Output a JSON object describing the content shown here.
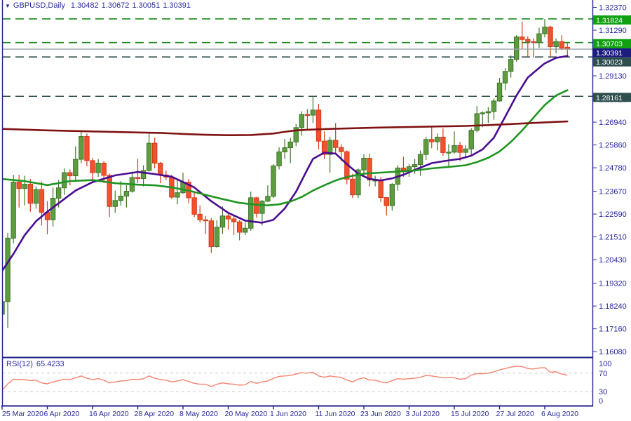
{
  "header": {
    "symbol": "GBPUSD,Daily",
    "open": "1.30482",
    "high": "1.30672",
    "low": "1.30051",
    "close": "1.30391"
  },
  "colors": {
    "background": "#ffffff",
    "frame": "#22228c",
    "axis_text": "#29299b",
    "bull_fill": "#5f9c40",
    "bull_stroke": "#3e7728",
    "bear_fill": "#f0512e",
    "bear_stroke": "#d63c1b",
    "ma_fast": "#4a0d90",
    "ma_mid": "#209420",
    "ma_slow": "#801212",
    "level_green": "#1b8a1b",
    "level_slate": "#2F4F4F",
    "bid_line": "#98a2a8",
    "tag_green": "#10a010",
    "tag_navy": "#1c1c7d",
    "tag_slate": "#2F4F4F",
    "tag_text": "#ffffff",
    "rsi_line": "#f5846f",
    "rsi_grid": "#c8c8c8"
  },
  "chart_data": {
    "type": "candlestick",
    "title": "GBPUSD,Daily",
    "ylim": [
      1.15886,
      1.32718
    ],
    "grid": "off",
    "price_ticks": [
      "1.32370",
      "1.31290",
      "1.29130",
      "1.28020",
      "1.26940",
      "1.25860",
      "1.24780",
      "1.23670",
      "1.22590",
      "1.21510",
      "1.20430",
      "1.19320",
      "1.18240",
      "1.17160",
      "1.16080"
    ],
    "x_ticks": [
      {
        "label": "25 Mar 2020",
        "bar": 0
      },
      {
        "label": "6 Apr 2020",
        "bar": 8
      },
      {
        "label": "16 Apr 2020",
        "bar": 16
      },
      {
        "label": "28 Apr 2020",
        "bar": 24
      },
      {
        "label": "8 May 2020",
        "bar": 32
      },
      {
        "label": "20 May 2020",
        "bar": 40
      },
      {
        "label": "1 Jun 2020",
        "bar": 48
      },
      {
        "label": "11 Jun 2020",
        "bar": 56
      },
      {
        "label": "23 Jun 2020",
        "bar": 64
      },
      {
        "label": "3 Jul 2020",
        "bar": 72
      },
      {
        "label": "15 Jul 2020",
        "bar": 80
      },
      {
        "label": "27 Jul 2020",
        "bar": 88
      },
      {
        "label": "6 Aug 2020",
        "bar": 96
      }
    ],
    "levels": [
      {
        "label": "1.31824",
        "price": 1.31824,
        "line": "dashed",
        "color_key": "level_green",
        "tag_key": "tag_green"
      },
      {
        "label": "1.30703",
        "price": 1.30703,
        "line": "dashed",
        "color_key": "level_green",
        "tag_key": "tag_green"
      },
      {
        "label": "1.30391",
        "price": 1.30391,
        "line": "solid",
        "color_key": "bid_line",
        "tag_key": "tag_navy"
      },
      {
        "label": "1.30023",
        "price": 1.30023,
        "line": "dashed",
        "color_key": "level_slate",
        "tag_key": "tag_slate"
      },
      {
        "label": "1.28161",
        "price": 1.28161,
        "line": "dashed",
        "color_key": "level_slate",
        "tag_key": "tag_slate"
      }
    ],
    "candles": [
      [
        1.1785,
        1.1855,
        1.1665,
        1.1845
      ],
      [
        1.1845,
        1.217,
        1.172,
        1.2145
      ],
      [
        1.2145,
        1.2445,
        1.212,
        1.241
      ],
      [
        1.241,
        1.2445,
        1.229,
        1.238
      ],
      [
        1.238,
        1.244,
        1.23,
        1.24
      ],
      [
        1.24,
        1.2425,
        1.227,
        1.231
      ],
      [
        1.231,
        1.239,
        1.2285,
        1.2375
      ],
      [
        1.2375,
        1.2413,
        1.2205,
        1.2267
      ],
      [
        1.2267,
        1.232,
        1.2163,
        1.2232
      ],
      [
        1.2232,
        1.2385,
        1.22,
        1.2334
      ],
      [
        1.2334,
        1.242,
        1.229,
        1.2383
      ],
      [
        1.2383,
        1.2475,
        1.235,
        1.2455
      ],
      [
        1.2455,
        1.247,
        1.2395,
        1.244
      ],
      [
        1.244,
        1.258,
        1.242,
        1.2518
      ],
      [
        1.2518,
        1.265,
        1.25,
        1.2626
      ],
      [
        1.2626,
        1.264,
        1.2485,
        1.2512
      ],
      [
        1.2512,
        1.2525,
        1.2405,
        1.2455
      ],
      [
        1.2455,
        1.252,
        1.2435,
        1.25
      ],
      [
        1.25,
        1.251,
        1.2405,
        1.2442
      ],
      [
        1.2442,
        1.245,
        1.2245,
        1.2295
      ],
      [
        1.2295,
        1.237,
        1.2265,
        1.2323
      ],
      [
        1.2323,
        1.2415,
        1.23,
        1.2344
      ],
      [
        1.2344,
        1.2395,
        1.229,
        1.2367
      ],
      [
        1.2367,
        1.246,
        1.236,
        1.2432
      ],
      [
        1.2432,
        1.252,
        1.2405,
        1.2427
      ],
      [
        1.2427,
        1.249,
        1.239,
        1.2465
      ],
      [
        1.2465,
        1.2643,
        1.246,
        1.2594
      ],
      [
        1.2594,
        1.262,
        1.2475,
        1.25
      ],
      [
        1.25,
        1.2505,
        1.2405,
        1.2444
      ],
      [
        1.2444,
        1.2465,
        1.242,
        1.2434
      ],
      [
        1.2434,
        1.2445,
        1.233,
        1.2339
      ],
      [
        1.2339,
        1.242,
        1.2305,
        1.236
      ],
      [
        1.236,
        1.2455,
        1.2355,
        1.241
      ],
      [
        1.241,
        1.2425,
        1.231,
        1.2336
      ],
      [
        1.2336,
        1.2365,
        1.2245,
        1.2258
      ],
      [
        1.2258,
        1.23,
        1.222,
        1.2232
      ],
      [
        1.2232,
        1.225,
        1.2165,
        1.2227
      ],
      [
        1.2227,
        1.224,
        1.2075,
        1.2105
      ],
      [
        1.2105,
        1.223,
        1.21,
        1.2197
      ],
      [
        1.2197,
        1.2295,
        1.2165,
        1.225
      ],
      [
        1.225,
        1.2262,
        1.2185,
        1.2236
      ],
      [
        1.2236,
        1.2255,
        1.216,
        1.2222
      ],
      [
        1.2222,
        1.223,
        1.2135,
        1.2173
      ],
      [
        1.2173,
        1.222,
        1.216,
        1.2192
      ],
      [
        1.2192,
        1.2365,
        1.218,
        1.2336
      ],
      [
        1.2336,
        1.234,
        1.2242,
        1.2262
      ],
      [
        1.2262,
        1.2325,
        1.2205,
        1.232
      ],
      [
        1.232,
        1.2395,
        1.2315,
        1.2343
      ],
      [
        1.2343,
        1.2495,
        1.2335,
        1.2487
      ],
      [
        1.2487,
        1.2575,
        1.247,
        1.2553
      ],
      [
        1.2553,
        1.2615,
        1.252,
        1.2573
      ],
      [
        1.2573,
        1.262,
        1.25,
        1.26
      ],
      [
        1.26,
        1.2685,
        1.258,
        1.2668
      ],
      [
        1.2668,
        1.2745,
        1.263,
        1.273
      ],
      [
        1.273,
        1.2755,
        1.266,
        1.2727
      ],
      [
        1.2727,
        1.2816,
        1.269,
        1.2751
      ],
      [
        1.2751,
        1.278,
        1.2565,
        1.2604
      ],
      [
        1.2604,
        1.265,
        1.252,
        1.2541
      ],
      [
        1.2541,
        1.2625,
        1.2455,
        1.2608
      ],
      [
        1.2608,
        1.269,
        1.254,
        1.2574
      ],
      [
        1.2574,
        1.259,
        1.251,
        1.2554
      ],
      [
        1.2554,
        1.256,
        1.24,
        1.2424
      ],
      [
        1.2424,
        1.245,
        1.2335,
        1.235
      ],
      [
        1.235,
        1.2475,
        1.2335,
        1.2468
      ],
      [
        1.2468,
        1.2542,
        1.244,
        1.2523
      ],
      [
        1.2523,
        1.2545,
        1.239,
        1.242
      ],
      [
        1.242,
        1.244,
        1.239,
        1.242
      ],
      [
        1.242,
        1.2435,
        1.2315,
        1.2337
      ],
      [
        1.2337,
        1.234,
        1.2252,
        1.2299
      ],
      [
        1.2299,
        1.2405,
        1.2275,
        1.24
      ],
      [
        1.24,
        1.249,
        1.237,
        1.2477
      ],
      [
        1.2477,
        1.253,
        1.2435,
        1.2466
      ],
      [
        1.2466,
        1.2495,
        1.2435,
        1.2483
      ],
      [
        1.2483,
        1.252,
        1.245,
        1.2493
      ],
      [
        1.2493,
        1.256,
        1.244,
        1.2541
      ],
      [
        1.2541,
        1.2625,
        1.2515,
        1.2612
      ],
      [
        1.2612,
        1.267,
        1.257,
        1.2601
      ],
      [
        1.2601,
        1.264,
        1.256,
        1.2623
      ],
      [
        1.2623,
        1.2665,
        1.2535,
        1.255
      ],
      [
        1.255,
        1.259,
        1.248,
        1.2552
      ],
      [
        1.2552,
        1.265,
        1.2545,
        1.2583
      ],
      [
        1.2583,
        1.26,
        1.251,
        1.2551
      ],
      [
        1.2551,
        1.2585,
        1.2523,
        1.2567
      ],
      [
        1.2567,
        1.2665,
        1.254,
        1.2655
      ],
      [
        1.2655,
        1.277,
        1.2645,
        1.2734
      ],
      [
        1.2734,
        1.2745,
        1.267,
        1.2738
      ],
      [
        1.2738,
        1.2765,
        1.269,
        1.2744
      ],
      [
        1.2744,
        1.2805,
        1.2705,
        1.2794
      ],
      [
        1.2794,
        1.2903,
        1.2791,
        1.2879
      ],
      [
        1.2879,
        1.295,
        1.2845,
        1.2934
      ],
      [
        1.2934,
        1.301,
        1.2905,
        1.2991
      ],
      [
        1.2991,
        1.3105,
        1.298,
        1.3097
      ],
      [
        1.3097,
        1.317,
        1.304,
        1.3085
      ],
      [
        1.3085,
        1.31,
        1.3005,
        1.3075
      ],
      [
        1.3075,
        1.309,
        1.3,
        1.307
      ],
      [
        1.307,
        1.314,
        1.3045,
        1.3112
      ],
      [
        1.3112,
        1.31824,
        1.3095,
        1.3144
      ],
      [
        1.3144,
        1.315,
        1.3005,
        1.3051
      ],
      [
        1.3051,
        1.309,
        1.302,
        1.3075
      ],
      [
        1.3075,
        1.3105,
        1.3035,
        1.3044
      ],
      [
        1.30482,
        1.30672,
        1.30051,
        1.30391
      ]
    ],
    "ma_series": [
      {
        "name": "ma-fast-purple",
        "color_key": "ma_fast",
        "points": [
          [
            0,
            1.199
          ],
          [
            2,
            1.207
          ],
          [
            4,
            1.216
          ],
          [
            6,
            1.2225
          ],
          [
            8,
            1.227
          ],
          [
            10,
            1.231
          ],
          [
            13,
            1.237
          ],
          [
            16,
            1.241
          ],
          [
            20,
            1.2442
          ],
          [
            24,
            1.2458
          ],
          [
            27,
            1.2448
          ],
          [
            30,
            1.2436
          ],
          [
            34,
            1.2385
          ],
          [
            37,
            1.232
          ],
          [
            40,
            1.2265
          ],
          [
            43,
            1.2228
          ],
          [
            46,
            1.2218
          ],
          [
            48,
            1.2232
          ],
          [
            50,
            1.2285
          ],
          [
            52,
            1.2365
          ],
          [
            54,
            1.247
          ],
          [
            55,
            1.252
          ],
          [
            57,
            1.255
          ],
          [
            59,
            1.2545
          ],
          [
            61,
            1.2495
          ],
          [
            63,
            1.245
          ],
          [
            65,
            1.2425
          ],
          [
            67,
            1.2418
          ],
          [
            69,
            1.2428
          ],
          [
            71,
            1.2445
          ],
          [
            73,
            1.2468
          ],
          [
            76,
            1.25
          ],
          [
            79,
            1.2513
          ],
          [
            81,
            1.252
          ],
          [
            83,
            1.2535
          ],
          [
            85,
            1.2565
          ],
          [
            87,
            1.262
          ],
          [
            89,
            1.272
          ],
          [
            91,
            1.282
          ],
          [
            93,
            1.2905
          ],
          [
            95,
            1.295
          ],
          [
            96,
            1.2972
          ],
          [
            98,
            1.2998
          ],
          [
            100,
            1.3007
          ]
        ]
      },
      {
        "name": "ma-mid-green",
        "color_key": "ma_mid",
        "points": [
          [
            0,
            1.2425
          ],
          [
            4,
            1.2415
          ],
          [
            8,
            1.2396
          ],
          [
            12,
            1.2415
          ],
          [
            16,
            1.242
          ],
          [
            20,
            1.2405
          ],
          [
            24,
            1.2398
          ],
          [
            27,
            1.2395
          ],
          [
            30,
            1.2385
          ],
          [
            33,
            1.237
          ],
          [
            36,
            1.235
          ],
          [
            39,
            1.233
          ],
          [
            42,
            1.2312
          ],
          [
            45,
            1.2303
          ],
          [
            47,
            1.23
          ],
          [
            49,
            1.2305
          ],
          [
            51,
            1.2318
          ],
          [
            53,
            1.234
          ],
          [
            55,
            1.237
          ],
          [
            57,
            1.2395
          ],
          [
            59,
            1.2418
          ],
          [
            61,
            1.2435
          ],
          [
            64,
            1.245
          ],
          [
            67,
            1.2455
          ],
          [
            70,
            1.246
          ],
          [
            73,
            1.2465
          ],
          [
            76,
            1.2475
          ],
          [
            79,
            1.2482
          ],
          [
            82,
            1.249
          ],
          [
            84,
            1.2505
          ],
          [
            86,
            1.2525
          ],
          [
            88,
            1.2555
          ],
          [
            90,
            1.26
          ],
          [
            92,
            1.2655
          ],
          [
            94,
            1.2715
          ],
          [
            96,
            1.2775
          ],
          [
            98,
            1.282
          ],
          [
            100,
            1.2845
          ]
        ]
      },
      {
        "name": "ma-slow-maroon",
        "color_key": "ma_slow",
        "points": [
          [
            0,
            1.2662
          ],
          [
            8,
            1.2655
          ],
          [
            16,
            1.265
          ],
          [
            24,
            1.2645
          ],
          [
            28,
            1.2643
          ],
          [
            32,
            1.2638
          ],
          [
            36,
            1.2634
          ],
          [
            40,
            1.2632
          ],
          [
            44,
            1.2633
          ],
          [
            48,
            1.264
          ],
          [
            50,
            1.2648
          ],
          [
            52,
            1.2655
          ],
          [
            54,
            1.2658
          ],
          [
            58,
            1.2662
          ],
          [
            62,
            1.2665
          ],
          [
            66,
            1.2668
          ],
          [
            70,
            1.267
          ],
          [
            74,
            1.2672
          ],
          [
            78,
            1.2674
          ],
          [
            82,
            1.2676
          ],
          [
            86,
            1.268
          ],
          [
            90,
            1.2685
          ],
          [
            94,
            1.269
          ],
          [
            98,
            1.2695
          ],
          [
            100,
            1.2697
          ]
        ]
      }
    ],
    "rsi": {
      "label": "RSI(12)",
      "value": "65.4233",
      "ylim": [
        0,
        100
      ],
      "guide_levels": [
        70,
        30
      ],
      "scale": [
        {
          "label": "100",
          "value": 100
        },
        {
          "label": "70",
          "value": 70
        },
        {
          "label": "30",
          "value": 30
        },
        {
          "label": "0",
          "value": 0
        }
      ],
      "values": [
        33,
        47,
        57,
        56,
        56,
        54,
        55,
        49,
        47,
        51,
        54,
        57,
        56,
        60,
        64,
        59,
        56,
        58,
        55,
        49,
        51,
        53,
        54,
        57,
        56,
        58,
        64,
        59,
        56,
        55,
        51,
        53,
        56,
        52,
        48,
        46,
        46,
        41,
        46,
        49,
        47,
        46,
        44,
        45,
        52,
        48,
        51,
        53,
        59,
        63,
        64,
        65,
        68,
        71,
        70,
        72,
        64,
        61,
        64,
        62,
        61,
        55,
        51,
        57,
        60,
        55,
        55,
        51,
        49,
        54,
        58,
        57,
        58,
        59,
        61,
        65,
        64,
        62,
        60,
        61,
        60,
        57,
        58,
        66,
        69,
        69,
        70,
        73,
        77,
        80,
        83,
        85,
        84,
        80,
        79,
        81,
        82,
        72,
        73,
        68,
        65.4
      ]
    }
  }
}
